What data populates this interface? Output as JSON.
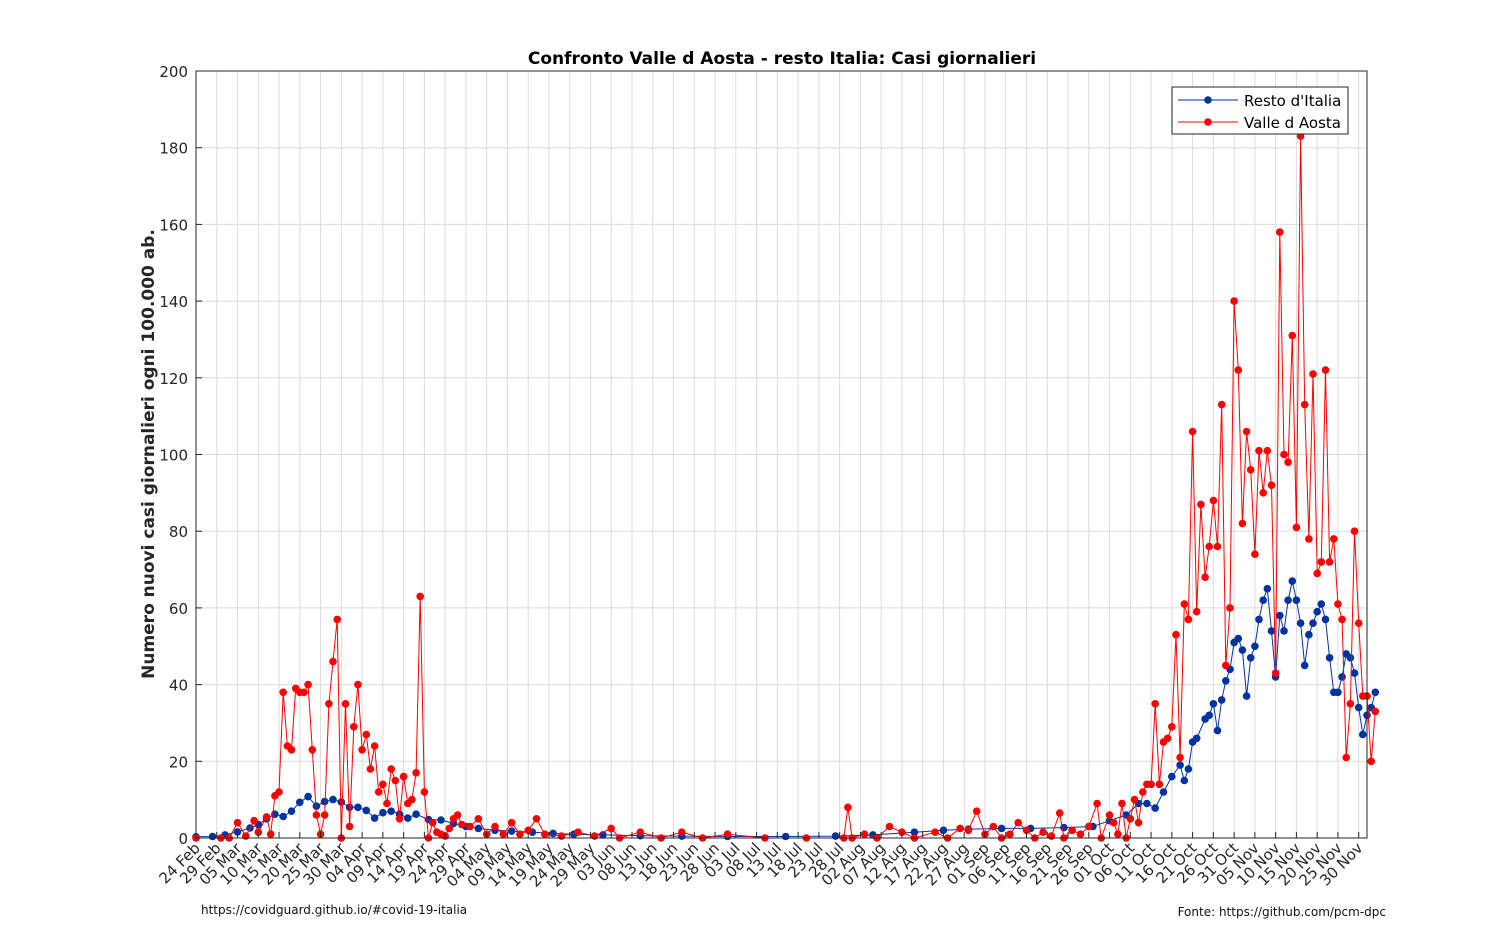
{
  "footer": {
    "left": "https://covidguard.github.io/#covid-19-italia",
    "right": "Fonte: https://github.com/pcm-dpc"
  },
  "chart_data": {
    "type": "line",
    "title": "Confronto Valle d Aosta - resto Italia: Casi giornalieri",
    "xlabel": "",
    "ylabel": "Numero nuovi casi giornalieri ogni 100.000 ab.",
    "ylim": [
      0,
      200
    ],
    "yticks": [
      0,
      20,
      40,
      60,
      80,
      100,
      120,
      140,
      160,
      180,
      200
    ],
    "x_start": "2020-02-24",
    "x_end": "2020-12-02",
    "grid": true,
    "legend_position": "top-right",
    "x_tick_labels": [
      "24 Feb",
      "29 Feb",
      "05 Mar",
      "10 Mar",
      "15 Mar",
      "20 Mar",
      "25 Mar",
      "30 Mar",
      "04 Apr",
      "09 Apr",
      "14 Apr",
      "19 Apr",
      "24 Apr",
      "29 Apr",
      "04 May",
      "09 May",
      "14 May",
      "19 May",
      "24 May",
      "29 May",
      "03 Jun",
      "08 Jun",
      "13 Jun",
      "18 Jun",
      "23 Jun",
      "28 Jun",
      "03 Jul",
      "08 Jul",
      "13 Jul",
      "18 Jul",
      "23 Jul",
      "28 Jul",
      "02 Aug",
      "07 Aug",
      "12 Aug",
      "17 Aug",
      "22 Aug",
      "27 Aug",
      "01 Sep",
      "06 Sep",
      "11 Sep",
      "16 Sep",
      "21 Sep",
      "26 Sep",
      "01 Oct",
      "06 Oct",
      "11 Oct",
      "16 Oct",
      "21 Oct",
      "26 Oct",
      "31 Oct",
      "05 Nov",
      "10 Nov",
      "15 Nov",
      "20 Nov",
      "25 Nov",
      "30 Nov"
    ],
    "series": [
      {
        "name": "Resto d'Italia",
        "color": "#0033A0",
        "points": [
          [
            "2020-02-24",
            0.3
          ],
          [
            "2020-02-28",
            0.4
          ],
          [
            "2020-03-02",
            0.8
          ],
          [
            "2020-03-05",
            1.6
          ],
          [
            "2020-03-08",
            2.6
          ],
          [
            "2020-03-10",
            3.5
          ],
          [
            "2020-03-12",
            5
          ],
          [
            "2020-03-14",
            6.2
          ],
          [
            "2020-03-16",
            5.6
          ],
          [
            "2020-03-18",
            7
          ],
          [
            "2020-03-20",
            9.3
          ],
          [
            "2020-03-22",
            10.8
          ],
          [
            "2020-03-24",
            8.3
          ],
          [
            "2020-03-26",
            9.5
          ],
          [
            "2020-03-28",
            10
          ],
          [
            "2020-03-30",
            9.4
          ],
          [
            "2020-04-01",
            8
          ],
          [
            "2020-04-03",
            8
          ],
          [
            "2020-04-05",
            7.2
          ],
          [
            "2020-04-07",
            5.2
          ],
          [
            "2020-04-09",
            6.6
          ],
          [
            "2020-04-11",
            7
          ],
          [
            "2020-04-13",
            6.2
          ],
          [
            "2020-04-15",
            5.2
          ],
          [
            "2020-04-17",
            6.2
          ],
          [
            "2020-04-20",
            4.8
          ],
          [
            "2020-04-23",
            4.7
          ],
          [
            "2020-04-26",
            3.8
          ],
          [
            "2020-04-29",
            3
          ],
          [
            "2020-05-02",
            2.5
          ],
          [
            "2020-05-06",
            2
          ],
          [
            "2020-05-10",
            1.8
          ],
          [
            "2020-05-15",
            1.5
          ],
          [
            "2020-05-20",
            1.2
          ],
          [
            "2020-05-25",
            1
          ],
          [
            "2020-06-01",
            0.8
          ],
          [
            "2020-06-10",
            0.6
          ],
          [
            "2020-06-20",
            0.5
          ],
          [
            "2020-07-01",
            0.4
          ],
          [
            "2020-07-15",
            0.4
          ],
          [
            "2020-07-27",
            0.5
          ],
          [
            "2020-08-05",
            0.8
          ],
          [
            "2020-08-15",
            1.5
          ],
          [
            "2020-08-22",
            2
          ],
          [
            "2020-08-28",
            2.3
          ],
          [
            "2020-09-05",
            2.5
          ],
          [
            "2020-09-12",
            2.5
          ],
          [
            "2020-09-20",
            2.7
          ],
          [
            "2020-09-27",
            3
          ],
          [
            "2020-10-01",
            4.5
          ],
          [
            "2020-10-05",
            6
          ],
          [
            "2020-10-08",
            9
          ],
          [
            "2020-10-10",
            9
          ],
          [
            "2020-10-12",
            7.8
          ],
          [
            "2020-10-14",
            12
          ],
          [
            "2020-10-16",
            16
          ],
          [
            "2020-10-18",
            19
          ],
          [
            "2020-10-19",
            15
          ],
          [
            "2020-10-20",
            18
          ],
          [
            "2020-10-21",
            25
          ],
          [
            "2020-10-22",
            26
          ],
          [
            "2020-10-24",
            31
          ],
          [
            "2020-10-25",
            32
          ],
          [
            "2020-10-26",
            35
          ],
          [
            "2020-10-27",
            28
          ],
          [
            "2020-10-28",
            36
          ],
          [
            "2020-10-29",
            41
          ],
          [
            "2020-10-30",
            44
          ],
          [
            "2020-10-31",
            51
          ],
          [
            "2020-11-01",
            52
          ],
          [
            "2020-11-02",
            49
          ],
          [
            "2020-11-03",
            37
          ],
          [
            "2020-11-04",
            47
          ],
          [
            "2020-11-05",
            50
          ],
          [
            "2020-11-06",
            57
          ],
          [
            "2020-11-07",
            62
          ],
          [
            "2020-11-08",
            65
          ],
          [
            "2020-11-09",
            54
          ],
          [
            "2020-11-10",
            42
          ],
          [
            "2020-11-11",
            58
          ],
          [
            "2020-11-12",
            54
          ],
          [
            "2020-11-13",
            62
          ],
          [
            "2020-11-14",
            67
          ],
          [
            "2020-11-15",
            62
          ],
          [
            "2020-11-16",
            56
          ],
          [
            "2020-11-17",
            45
          ],
          [
            "2020-11-18",
            53
          ],
          [
            "2020-11-19",
            56
          ],
          [
            "2020-11-20",
            59
          ],
          [
            "2020-11-21",
            61
          ],
          [
            "2020-11-22",
            57
          ],
          [
            "2020-11-23",
            47
          ],
          [
            "2020-11-24",
            38
          ],
          [
            "2020-11-25",
            38
          ],
          [
            "2020-11-26",
            42
          ],
          [
            "2020-11-27",
            48
          ],
          [
            "2020-11-28",
            47
          ],
          [
            "2020-11-29",
            43
          ],
          [
            "2020-11-30",
            34
          ],
          [
            "2020-12-01",
            27
          ],
          [
            "2020-12-02",
            32
          ],
          [
            "2020-12-03",
            34
          ],
          [
            "2020-12-04",
            38
          ]
        ]
      },
      {
        "name": "Valle d Aosta",
        "color": "#FF0000",
        "points": [
          [
            "2020-02-24",
            0
          ],
          [
            "2020-03-01",
            0
          ],
          [
            "2020-03-03",
            0
          ],
          [
            "2020-03-05",
            4
          ],
          [
            "2020-03-07",
            0.5
          ],
          [
            "2020-03-09",
            4.5
          ],
          [
            "2020-03-10",
            1.5
          ],
          [
            "2020-03-12",
            5.5
          ],
          [
            "2020-03-13",
            1
          ],
          [
            "2020-03-14",
            11
          ],
          [
            "2020-03-15",
            12
          ],
          [
            "2020-03-16",
            38
          ],
          [
            "2020-03-17",
            24
          ],
          [
            "2020-03-18",
            23
          ],
          [
            "2020-03-19",
            39
          ],
          [
            "2020-03-20",
            38
          ],
          [
            "2020-03-21",
            38
          ],
          [
            "2020-03-22",
            40
          ],
          [
            "2020-03-23",
            23
          ],
          [
            "2020-03-24",
            6
          ],
          [
            "2020-03-25",
            1
          ],
          [
            "2020-03-26",
            6
          ],
          [
            "2020-03-27",
            35
          ],
          [
            "2020-03-28",
            46
          ],
          [
            "2020-03-29",
            57
          ],
          [
            "2020-03-30",
            0
          ],
          [
            "2020-03-31",
            35
          ],
          [
            "2020-04-01",
            3
          ],
          [
            "2020-04-02",
            29
          ],
          [
            "2020-04-03",
            40
          ],
          [
            "2020-04-04",
            23
          ],
          [
            "2020-04-05",
            27
          ],
          [
            "2020-04-06",
            18
          ],
          [
            "2020-04-07",
            24
          ],
          [
            "2020-04-08",
            12
          ],
          [
            "2020-04-09",
            14
          ],
          [
            "2020-04-10",
            9
          ],
          [
            "2020-04-11",
            18
          ],
          [
            "2020-04-12",
            15
          ],
          [
            "2020-04-13",
            5
          ],
          [
            "2020-04-14",
            16
          ],
          [
            "2020-04-15",
            9
          ],
          [
            "2020-04-16",
            10
          ],
          [
            "2020-04-17",
            17
          ],
          [
            "2020-04-18",
            63
          ],
          [
            "2020-04-19",
            12
          ],
          [
            "2020-04-20",
            0
          ],
          [
            "2020-04-21",
            4
          ],
          [
            "2020-04-22",
            1.5
          ],
          [
            "2020-04-23",
            1
          ],
          [
            "2020-04-24",
            0.5
          ],
          [
            "2020-04-25",
            2.5
          ],
          [
            "2020-04-26",
            5
          ],
          [
            "2020-04-27",
            6
          ],
          [
            "2020-04-28",
            3.5
          ],
          [
            "2020-04-30",
            3
          ],
          [
            "2020-05-02",
            5
          ],
          [
            "2020-05-04",
            1
          ],
          [
            "2020-05-06",
            3
          ],
          [
            "2020-05-08",
            1
          ],
          [
            "2020-05-10",
            4
          ],
          [
            "2020-05-12",
            1
          ],
          [
            "2020-05-14",
            2
          ],
          [
            "2020-05-16",
            5
          ],
          [
            "2020-05-18",
            1
          ],
          [
            "2020-05-22",
            0.5
          ],
          [
            "2020-05-26",
            1.5
          ],
          [
            "2020-05-30",
            0.5
          ],
          [
            "2020-06-03",
            2.5
          ],
          [
            "2020-06-05",
            0
          ],
          [
            "2020-06-10",
            1.5
          ],
          [
            "2020-06-15",
            0
          ],
          [
            "2020-06-20",
            1.5
          ],
          [
            "2020-06-25",
            0
          ],
          [
            "2020-07-01",
            1
          ],
          [
            "2020-07-10",
            0
          ],
          [
            "2020-07-20",
            0
          ],
          [
            "2020-07-29",
            0
          ],
          [
            "2020-07-30",
            8
          ],
          [
            "2020-07-31",
            0
          ],
          [
            "2020-08-03",
            1
          ],
          [
            "2020-08-06",
            0
          ],
          [
            "2020-08-09",
            3
          ],
          [
            "2020-08-12",
            1.5
          ],
          [
            "2020-08-15",
            0
          ],
          [
            "2020-08-20",
            1.5
          ],
          [
            "2020-08-23",
            0
          ],
          [
            "2020-08-26",
            2.5
          ],
          [
            "2020-08-28",
            2
          ],
          [
            "2020-08-30",
            7
          ],
          [
            "2020-09-01",
            1
          ],
          [
            "2020-09-03",
            3
          ],
          [
            "2020-09-05",
            0
          ],
          [
            "2020-09-07",
            1
          ],
          [
            "2020-09-09",
            4
          ],
          [
            "2020-09-11",
            2
          ],
          [
            "2020-09-13",
            0
          ],
          [
            "2020-09-15",
            1.5
          ],
          [
            "2020-09-17",
            0.5
          ],
          [
            "2020-09-19",
            6.5
          ],
          [
            "2020-09-20",
            0
          ],
          [
            "2020-09-22",
            2
          ],
          [
            "2020-09-24",
            1
          ],
          [
            "2020-09-26",
            3
          ],
          [
            "2020-09-28",
            9
          ],
          [
            "2020-09-29",
            0
          ],
          [
            "2020-10-01",
            6
          ],
          [
            "2020-10-02",
            4
          ],
          [
            "2020-10-03",
            1
          ],
          [
            "2020-10-04",
            9
          ],
          [
            "2020-10-05",
            0
          ],
          [
            "2020-10-06",
            5
          ],
          [
            "2020-10-07",
            10
          ],
          [
            "2020-10-08",
            4
          ],
          [
            "2020-10-09",
            12
          ],
          [
            "2020-10-10",
            14
          ],
          [
            "2020-10-11",
            14
          ],
          [
            "2020-10-12",
            35
          ],
          [
            "2020-10-13",
            14
          ],
          [
            "2020-10-14",
            25
          ],
          [
            "2020-10-15",
            26
          ],
          [
            "2020-10-16",
            29
          ],
          [
            "2020-10-17",
            53
          ],
          [
            "2020-10-18",
            21
          ],
          [
            "2020-10-19",
            61
          ],
          [
            "2020-10-20",
            57
          ],
          [
            "2020-10-21",
            106
          ],
          [
            "2020-10-22",
            59
          ],
          [
            "2020-10-23",
            87
          ],
          [
            "2020-10-24",
            68
          ],
          [
            "2020-10-25",
            76
          ],
          [
            "2020-10-26",
            88
          ],
          [
            "2020-10-27",
            76
          ],
          [
            "2020-10-28",
            113
          ],
          [
            "2020-10-29",
            45
          ],
          [
            "2020-10-30",
            60
          ],
          [
            "2020-10-31",
            140
          ],
          [
            "2020-11-01",
            122
          ],
          [
            "2020-11-02",
            82
          ],
          [
            "2020-11-03",
            106
          ],
          [
            "2020-11-04",
            96
          ],
          [
            "2020-11-05",
            74
          ],
          [
            "2020-11-06",
            101
          ],
          [
            "2020-11-07",
            90
          ],
          [
            "2020-11-08",
            101
          ],
          [
            "2020-11-09",
            92
          ],
          [
            "2020-11-10",
            43
          ],
          [
            "2020-11-11",
            158
          ],
          [
            "2020-11-12",
            100
          ],
          [
            "2020-11-13",
            98
          ],
          [
            "2020-11-14",
            131
          ],
          [
            "2020-11-15",
            81
          ],
          [
            "2020-11-16",
            183
          ],
          [
            "2020-11-17",
            113
          ],
          [
            "2020-11-18",
            78
          ],
          [
            "2020-11-19",
            121
          ],
          [
            "2020-11-20",
            69
          ],
          [
            "2020-11-21",
            72
          ],
          [
            "2020-11-22",
            122
          ],
          [
            "2020-11-23",
            72
          ],
          [
            "2020-11-24",
            78
          ],
          [
            "2020-11-25",
            61
          ],
          [
            "2020-11-26",
            57
          ],
          [
            "2020-11-27",
            21
          ],
          [
            "2020-11-28",
            35
          ],
          [
            "2020-11-29",
            80
          ],
          [
            "2020-11-30",
            56
          ],
          [
            "2020-12-01",
            37
          ],
          [
            "2020-12-02",
            37
          ],
          [
            "2020-12-03",
            20
          ],
          [
            "2020-12-04",
            33
          ]
        ]
      }
    ]
  }
}
